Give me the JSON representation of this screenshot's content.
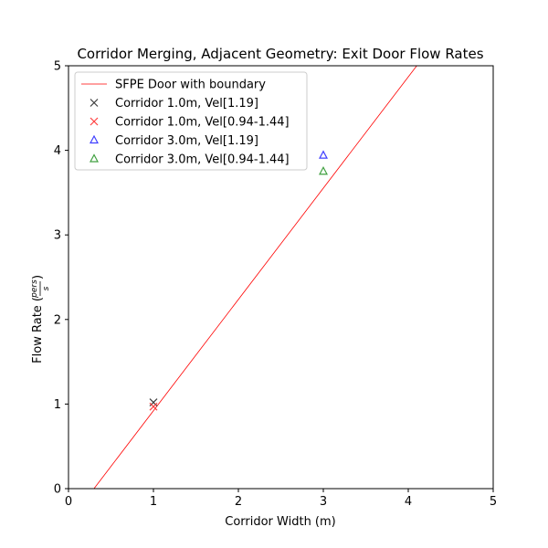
{
  "chart_data": {
    "type": "scatter",
    "title": "Corridor Merging, Adjacent Geometry: Exit Door Flow Rates",
    "xlabel": "Corridor Width (m)",
    "ylabel_prefix": "Flow Rate (",
    "ylabel_frac_num": "pers",
    "ylabel_frac_den": "s",
    "ylabel_suffix": ")",
    "xlim": [
      0,
      5
    ],
    "ylim": [
      0,
      5
    ],
    "xticks": [
      "0",
      "1",
      "2",
      "3",
      "4",
      "5"
    ],
    "yticks": [
      "0",
      "1",
      "2",
      "3",
      "4",
      "5"
    ],
    "grid": false,
    "legend_position": "upper-left",
    "series": [
      {
        "name": "SFPE Door with boundary",
        "kind": "line",
        "color": "#ff0000",
        "x": [
          0.3,
          4.1
        ],
        "y": [
          0,
          5
        ]
      },
      {
        "name": "Corridor 1.0m, Vel[1.19]",
        "kind": "marker",
        "marker": "x",
        "color": "#404040",
        "x": [
          1.0
        ],
        "y": [
          1.02
        ]
      },
      {
        "name": "Corridor 1.0m, Vel[0.94-1.44]",
        "kind": "marker",
        "marker": "x",
        "color": "#ff4040",
        "x": [
          1.0
        ],
        "y": [
          0.97
        ]
      },
      {
        "name": "Corridor 3.0m, Vel[1.19]",
        "kind": "marker",
        "marker": "triangle",
        "color": "#4040ff",
        "x": [
          3.0
        ],
        "y": [
          3.94
        ]
      },
      {
        "name": "Corridor 3.0m, Vel[0.94-1.44]",
        "kind": "marker",
        "marker": "triangle",
        "color": "#40a040",
        "x": [
          3.0
        ],
        "y": [
          3.75
        ]
      }
    ]
  }
}
